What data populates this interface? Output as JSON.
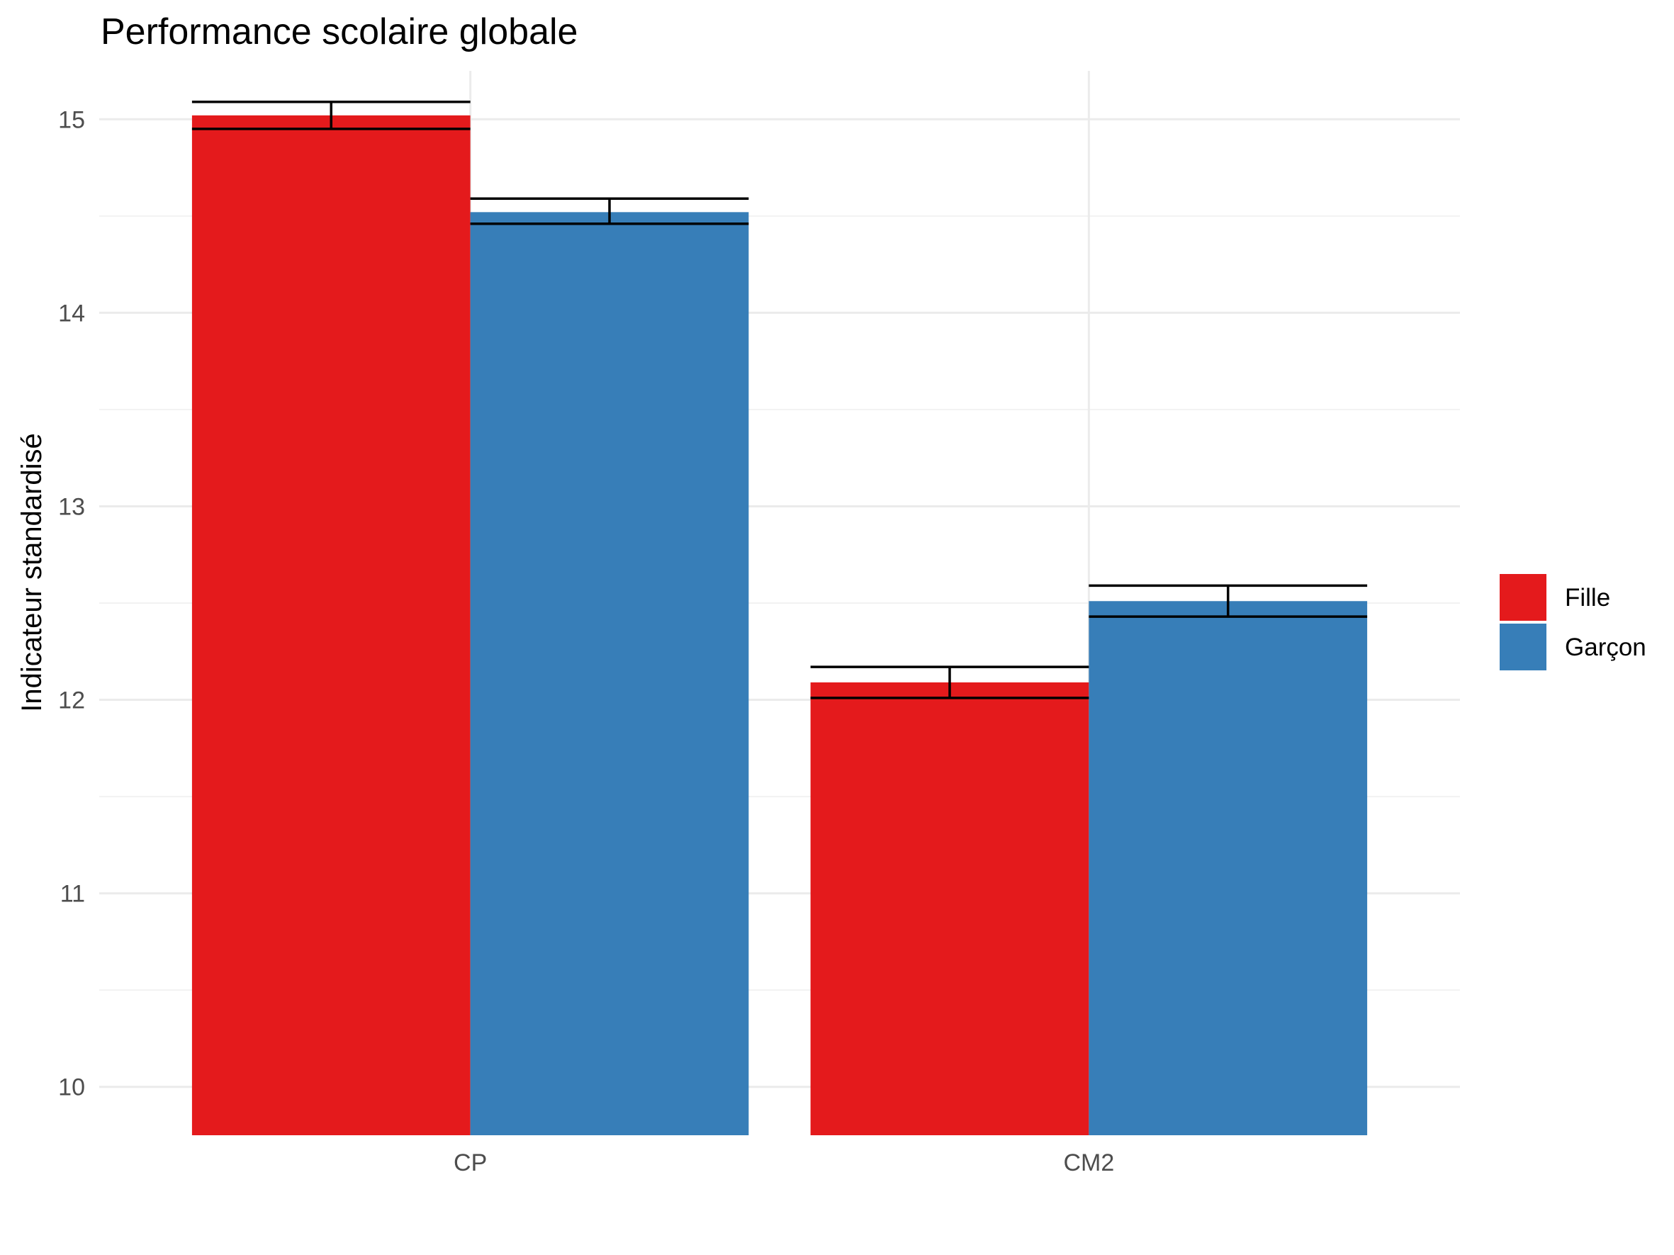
{
  "chart_data": {
    "type": "bar",
    "title": "Performance scolaire globale",
    "xlabel": "",
    "ylabel": "Indicateur standardisé",
    "categories": [
      "CP",
      "CM2"
    ],
    "series": [
      {
        "name": "Fille",
        "color": "#E41A1C",
        "values": [
          15.02,
          12.09
        ],
        "error_low": [
          14.95,
          12.01
        ],
        "error_high": [
          15.09,
          12.17
        ]
      },
      {
        "name": "Garçon",
        "color": "#377EB8",
        "values": [
          14.52,
          12.51
        ],
        "error_low": [
          14.46,
          12.43
        ],
        "error_high": [
          14.59,
          12.59
        ]
      }
    ],
    "ylim": [
      9.75,
      15.25
    ],
    "yticks": [
      "10",
      "11",
      "12",
      "13",
      "14",
      "15"
    ],
    "grid": true,
    "legend_position": "right"
  }
}
